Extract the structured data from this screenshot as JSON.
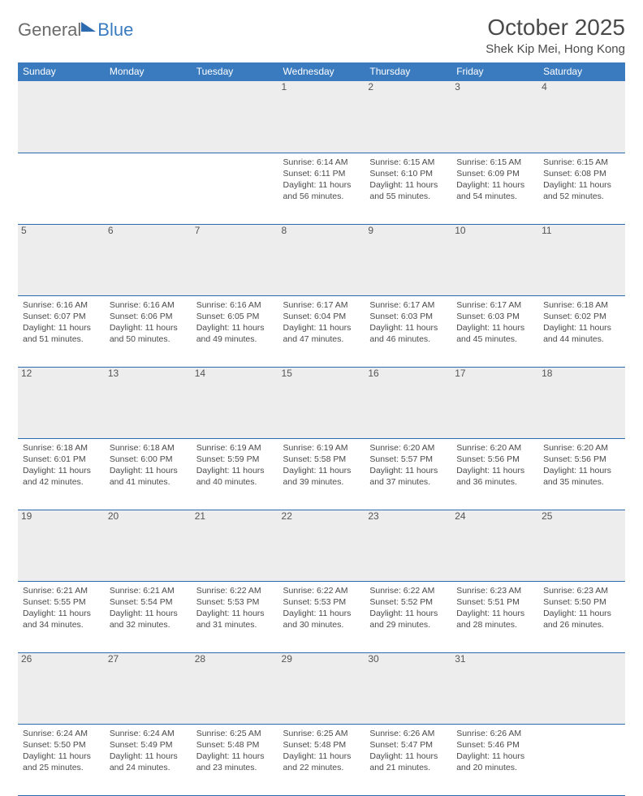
{
  "logo": {
    "part1": "General",
    "part2": "Blue"
  },
  "title": "October 2025",
  "location": "Shek Kip Mei, Hong Kong",
  "colors": {
    "header_bg": "#3a7bbf",
    "header_text": "#ffffff",
    "daynum_bg": "#ededed",
    "rule": "#2d6bb0",
    "body_text": "#4a4a4a"
  },
  "weekdays": [
    "Sunday",
    "Monday",
    "Tuesday",
    "Wednesday",
    "Thursday",
    "Friday",
    "Saturday"
  ],
  "first_weekday_index": 3,
  "days": [
    {
      "n": 1,
      "sunrise": "6:14 AM",
      "sunset": "6:11 PM",
      "daylight": "11 hours and 56 minutes."
    },
    {
      "n": 2,
      "sunrise": "6:15 AM",
      "sunset": "6:10 PM",
      "daylight": "11 hours and 55 minutes."
    },
    {
      "n": 3,
      "sunrise": "6:15 AM",
      "sunset": "6:09 PM",
      "daylight": "11 hours and 54 minutes."
    },
    {
      "n": 4,
      "sunrise": "6:15 AM",
      "sunset": "6:08 PM",
      "daylight": "11 hours and 52 minutes."
    },
    {
      "n": 5,
      "sunrise": "6:16 AM",
      "sunset": "6:07 PM",
      "daylight": "11 hours and 51 minutes."
    },
    {
      "n": 6,
      "sunrise": "6:16 AM",
      "sunset": "6:06 PM",
      "daylight": "11 hours and 50 minutes."
    },
    {
      "n": 7,
      "sunrise": "6:16 AM",
      "sunset": "6:05 PM",
      "daylight": "11 hours and 49 minutes."
    },
    {
      "n": 8,
      "sunrise": "6:17 AM",
      "sunset": "6:04 PM",
      "daylight": "11 hours and 47 minutes."
    },
    {
      "n": 9,
      "sunrise": "6:17 AM",
      "sunset": "6:03 PM",
      "daylight": "11 hours and 46 minutes."
    },
    {
      "n": 10,
      "sunrise": "6:17 AM",
      "sunset": "6:03 PM",
      "daylight": "11 hours and 45 minutes."
    },
    {
      "n": 11,
      "sunrise": "6:18 AM",
      "sunset": "6:02 PM",
      "daylight": "11 hours and 44 minutes."
    },
    {
      "n": 12,
      "sunrise": "6:18 AM",
      "sunset": "6:01 PM",
      "daylight": "11 hours and 42 minutes."
    },
    {
      "n": 13,
      "sunrise": "6:18 AM",
      "sunset": "6:00 PM",
      "daylight": "11 hours and 41 minutes."
    },
    {
      "n": 14,
      "sunrise": "6:19 AM",
      "sunset": "5:59 PM",
      "daylight": "11 hours and 40 minutes."
    },
    {
      "n": 15,
      "sunrise": "6:19 AM",
      "sunset": "5:58 PM",
      "daylight": "11 hours and 39 minutes."
    },
    {
      "n": 16,
      "sunrise": "6:20 AM",
      "sunset": "5:57 PM",
      "daylight": "11 hours and 37 minutes."
    },
    {
      "n": 17,
      "sunrise": "6:20 AM",
      "sunset": "5:56 PM",
      "daylight": "11 hours and 36 minutes."
    },
    {
      "n": 18,
      "sunrise": "6:20 AM",
      "sunset": "5:56 PM",
      "daylight": "11 hours and 35 minutes."
    },
    {
      "n": 19,
      "sunrise": "6:21 AM",
      "sunset": "5:55 PM",
      "daylight": "11 hours and 34 minutes."
    },
    {
      "n": 20,
      "sunrise": "6:21 AM",
      "sunset": "5:54 PM",
      "daylight": "11 hours and 32 minutes."
    },
    {
      "n": 21,
      "sunrise": "6:22 AM",
      "sunset": "5:53 PM",
      "daylight": "11 hours and 31 minutes."
    },
    {
      "n": 22,
      "sunrise": "6:22 AM",
      "sunset": "5:53 PM",
      "daylight": "11 hours and 30 minutes."
    },
    {
      "n": 23,
      "sunrise": "6:22 AM",
      "sunset": "5:52 PM",
      "daylight": "11 hours and 29 minutes."
    },
    {
      "n": 24,
      "sunrise": "6:23 AM",
      "sunset": "5:51 PM",
      "daylight": "11 hours and 28 minutes."
    },
    {
      "n": 25,
      "sunrise": "6:23 AM",
      "sunset": "5:50 PM",
      "daylight": "11 hours and 26 minutes."
    },
    {
      "n": 26,
      "sunrise": "6:24 AM",
      "sunset": "5:50 PM",
      "daylight": "11 hours and 25 minutes."
    },
    {
      "n": 27,
      "sunrise": "6:24 AM",
      "sunset": "5:49 PM",
      "daylight": "11 hours and 24 minutes."
    },
    {
      "n": 28,
      "sunrise": "6:25 AM",
      "sunset": "5:48 PM",
      "daylight": "11 hours and 23 minutes."
    },
    {
      "n": 29,
      "sunrise": "6:25 AM",
      "sunset": "5:48 PM",
      "daylight": "11 hours and 22 minutes."
    },
    {
      "n": 30,
      "sunrise": "6:26 AM",
      "sunset": "5:47 PM",
      "daylight": "11 hours and 21 minutes."
    },
    {
      "n": 31,
      "sunrise": "6:26 AM",
      "sunset": "5:46 PM",
      "daylight": "11 hours and 20 minutes."
    }
  ],
  "labels": {
    "sunrise": "Sunrise:",
    "sunset": "Sunset:",
    "daylight": "Daylight:"
  }
}
